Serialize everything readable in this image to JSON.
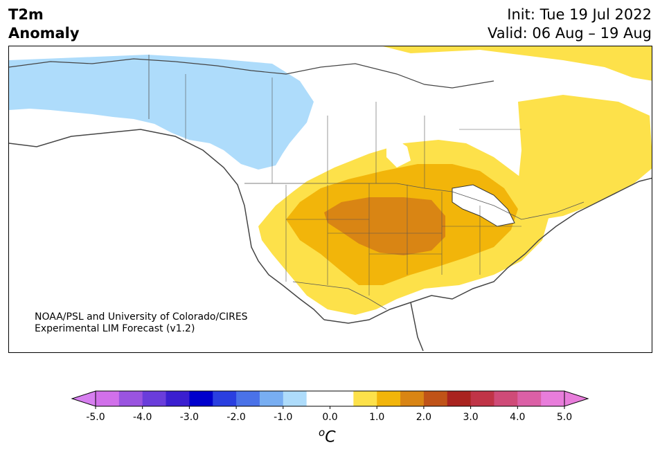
{
  "header": {
    "title_line1": "T2m",
    "title_line2": "Anomaly",
    "init": "Init: Tue 19 Jul 2022",
    "valid": "Valid: 06 Aug – 19 Aug"
  },
  "credit": {
    "line1": "NOAA/PSL and University of Colorado/CIRES",
    "line2": "Experimental LIM Forecast (v1.2)"
  },
  "colorbar": {
    "unit_sup": "o",
    "unit": "C",
    "ticks": [
      "-5.0",
      "-4.0",
      "-3.0",
      "-2.0",
      "-1.0",
      "0.0",
      "1.0",
      "2.0",
      "3.0",
      "4.0",
      "5.0"
    ],
    "under_color": "#d77ff0",
    "over_color": "#e87ddb",
    "colors": [
      "#d170ea",
      "#9a54e0",
      "#6a3ddb",
      "#3b1fd0",
      "#0000cd",
      "#2a3fe0",
      "#4a72e8",
      "#78aef2",
      "#aedcfb",
      "#ffffff",
      "#ffffff",
      "#fde14a",
      "#f2b50a",
      "#d98514",
      "#c05318",
      "#a9231f",
      "#c03447",
      "#cf4b78",
      "#db60a6",
      "#e87ddb"
    ]
  },
  "legend_colors": {
    "cold_anomaly": "#aedcfb",
    "warm_1": "#fde14a",
    "warm_2": "#f2b50a",
    "warm_3": "#d98514"
  }
}
